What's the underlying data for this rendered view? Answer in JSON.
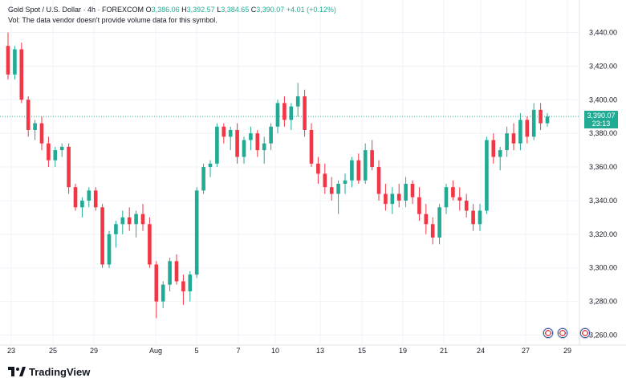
{
  "header": {
    "symbol": "Gold Spot / U.S. Dollar · 4h · FOREXCOM",
    "open_label": "O",
    "open": "3,386.06",
    "high_label": "H",
    "high": "3,392.57",
    "low_label": "L",
    "low": "3,384.65",
    "close_label": "C",
    "close": "3,390.07",
    "change": "+4.01 (+0.12%)",
    "volume_note": "Vol: The data vendor doesn't provide volume data for this symbol."
  },
  "price_tag": {
    "price": "3,390.07",
    "countdown": "23:13"
  },
  "branding": {
    "name": "TradingView"
  },
  "colors": {
    "up": "#22ab94",
    "down": "#f23645",
    "grid": "#f0f3fa",
    "axis_text": "#131722"
  },
  "icons": {
    "event_1": "us-flag-event-icon",
    "event_2": "us-flag-event-icon",
    "event_3": "us-flag-event-icon"
  },
  "chart_data": {
    "type": "candlestick",
    "yticks": [
      "3,260.00",
      "3,280.00",
      "3,300.00",
      "3,320.00",
      "3,340.00",
      "3,360.00",
      "3,380.00",
      "3,400.00",
      "3,420.00",
      "3,440.00"
    ],
    "ylim": [
      3255,
      3445
    ],
    "xticks": [
      "23",
      "25",
      "29",
      "Aug",
      "5",
      "7",
      "10",
      "13",
      "15",
      "19",
      "21",
      "24",
      "27",
      "29"
    ],
    "current_price": 3390.07,
    "candles": [
      [
        3432,
        3440,
        3412,
        3415
      ],
      [
        3415,
        3432,
        3412,
        3430
      ],
      [
        3430,
        3434,
        3398,
        3400
      ],
      [
        3400,
        3402,
        3378,
        3382
      ],
      [
        3382,
        3388,
        3376,
        3386
      ],
      [
        3386,
        3390,
        3370,
        3374
      ],
      [
        3374,
        3378,
        3360,
        3364
      ],
      [
        3364,
        3372,
        3360,
        3370
      ],
      [
        3370,
        3374,
        3366,
        3372
      ],
      [
        3372,
        3374,
        3344,
        3348
      ],
      [
        3348,
        3350,
        3334,
        3336
      ],
      [
        3336,
        3342,
        3330,
        3340
      ],
      [
        3340,
        3348,
        3336,
        3346
      ],
      [
        3346,
        3348,
        3334,
        3336
      ],
      [
        3336,
        3338,
        3300,
        3302
      ],
      [
        3302,
        3322,
        3300,
        3320
      ],
      [
        3320,
        3328,
        3312,
        3326
      ],
      [
        3326,
        3334,
        3320,
        3330
      ],
      [
        3330,
        3336,
        3322,
        3326
      ],
      [
        3326,
        3334,
        3318,
        3332
      ],
      [
        3332,
        3338,
        3322,
        3326
      ],
      [
        3326,
        3330,
        3300,
        3302
      ],
      [
        3302,
        3304,
        3270,
        3280
      ],
      [
        3280,
        3292,
        3276,
        3290
      ],
      [
        3290,
        3306,
        3286,
        3304
      ],
      [
        3304,
        3308,
        3290,
        3292
      ],
      [
        3292,
        3296,
        3278,
        3286
      ],
      [
        3286,
        3298,
        3280,
        3296
      ],
      [
        3296,
        3348,
        3294,
        3346
      ],
      [
        3346,
        3362,
        3344,
        3360
      ],
      [
        3360,
        3364,
        3354,
        3362
      ],
      [
        3362,
        3386,
        3360,
        3384
      ],
      [
        3384,
        3386,
        3374,
        3378
      ],
      [
        3378,
        3384,
        3370,
        3382
      ],
      [
        3382,
        3386,
        3362,
        3366
      ],
      [
        3366,
        3378,
        3362,
        3376
      ],
      [
        3376,
        3384,
        3370,
        3380
      ],
      [
        3380,
        3382,
        3366,
        3370
      ],
      [
        3370,
        3378,
        3362,
        3374
      ],
      [
        3374,
        3386,
        3370,
        3384
      ],
      [
        3384,
        3400,
        3380,
        3398
      ],
      [
        3398,
        3402,
        3384,
        3388
      ],
      [
        3388,
        3398,
        3382,
        3396
      ],
      [
        3396,
        3410,
        3390,
        3402
      ],
      [
        3402,
        3406,
        3378,
        3382
      ],
      [
        3382,
        3386,
        3360,
        3362
      ],
      [
        3362,
        3366,
        3350,
        3356
      ],
      [
        3356,
        3362,
        3344,
        3348
      ],
      [
        3348,
        3354,
        3340,
        3344
      ],
      [
        3344,
        3352,
        3332,
        3350
      ],
      [
        3350,
        3356,
        3344,
        3352
      ],
      [
        3352,
        3366,
        3348,
        3364
      ],
      [
        3364,
        3368,
        3350,
        3352
      ],
      [
        3352,
        3374,
        3350,
        3370
      ],
      [
        3370,
        3376,
        3358,
        3360
      ],
      [
        3360,
        3364,
        3340,
        3344
      ],
      [
        3344,
        3350,
        3334,
        3338
      ],
      [
        3338,
        3348,
        3332,
        3344
      ],
      [
        3344,
        3350,
        3336,
        3340
      ],
      [
        3340,
        3354,
        3336,
        3350
      ],
      [
        3350,
        3352,
        3338,
        3342
      ],
      [
        3342,
        3348,
        3328,
        3332
      ],
      [
        3332,
        3338,
        3320,
        3326
      ],
      [
        3326,
        3330,
        3314,
        3318
      ],
      [
        3318,
        3338,
        3314,
        3336
      ],
      [
        3336,
        3350,
        3332,
        3348
      ],
      [
        3348,
        3352,
        3340,
        3342
      ],
      [
        3342,
        3348,
        3334,
        3340
      ],
      [
        3340,
        3344,
        3330,
        3334
      ],
      [
        3334,
        3338,
        3322,
        3326
      ],
      [
        3326,
        3338,
        3322,
        3334
      ],
      [
        3334,
        3378,
        3332,
        3376
      ],
      [
        3376,
        3380,
        3362,
        3366
      ],
      [
        3366,
        3372,
        3358,
        3370
      ],
      [
        3370,
        3384,
        3366,
        3380
      ],
      [
        3380,
        3386,
        3370,
        3374
      ],
      [
        3374,
        3392,
        3370,
        3388
      ],
      [
        3388,
        3390,
        3374,
        3378
      ],
      [
        3378,
        3398,
        3376,
        3394
      ],
      [
        3394,
        3398,
        3382,
        3386
      ],
      [
        3386,
        3392,
        3384,
        3390
      ]
    ]
  }
}
